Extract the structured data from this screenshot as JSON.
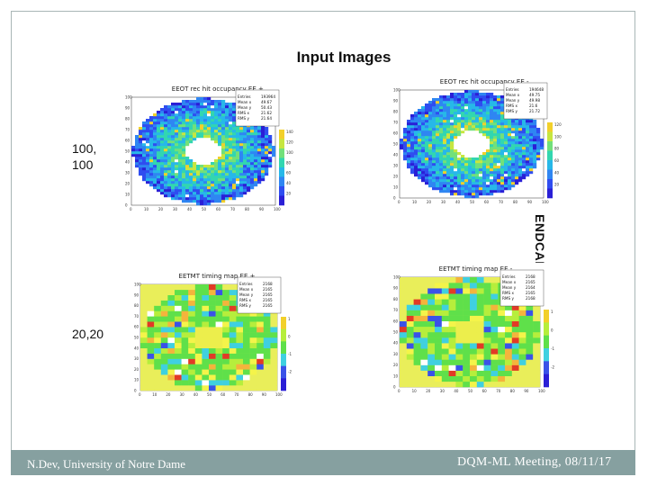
{
  "slide": {
    "title": "Input Images",
    "row1_label": [
      "100,",
      "100"
    ],
    "row2_label": "20,20",
    "side_label": "ENDCAPS",
    "footer_left": "N.Dev, University of Notre Dame",
    "footer_right": "DQM-ML Meeting, 08/11/17"
  },
  "panels": [
    {
      "title": "EEOT rec hit occupancy EE +",
      "stats": [
        [
          "Entries",
          "193964"
        ],
        [
          "Mean x",
          "49.67"
        ],
        [
          "Mean y",
          "50.43"
        ],
        [
          "RMS x",
          "21.62"
        ],
        [
          "RMS y",
          "21.64"
        ]
      ],
      "colorbar_ticks": [
        "140",
        "120",
        "100",
        "80",
        "60",
        "40",
        "20"
      ]
    },
    {
      "title": "EEOT rec hit occupancy EE -",
      "stats": [
        [
          "Entries",
          "194648"
        ],
        [
          "Mean x",
          "49.75"
        ],
        [
          "Mean y",
          "49.98"
        ],
        [
          "RMS x",
          "21.6"
        ],
        [
          "RMS y",
          "21.72"
        ]
      ],
      "colorbar_ticks": [
        "120",
        "100",
        "80",
        "60",
        "40",
        "20"
      ]
    },
    {
      "title": "EETMT timing map EE +",
      "stats": [
        [
          "Entries",
          "2168"
        ],
        [
          "Mean x",
          "2165"
        ],
        [
          "Mean y",
          "2165"
        ],
        [
          "RMS x",
          "2165"
        ],
        [
          "RMS y",
          "2165"
        ]
      ],
      "colorbar_ticks": [
        "1",
        "0",
        "-1",
        "-2"
      ]
    },
    {
      "title": "EETMT timing map EE -",
      "stats": [
        [
          "Entries",
          "2168"
        ],
        [
          "Mean x",
          "2165"
        ],
        [
          "Mean y",
          "2164"
        ],
        [
          "RMS x",
          "2165"
        ],
        [
          "RMS y",
          "2168"
        ]
      ],
      "colorbar_ticks": [
        "1",
        "0",
        "-1",
        "-2"
      ]
    }
  ],
  "axes": {
    "x_ticks": [
      "0",
      "10",
      "20",
      "30",
      "40",
      "50",
      "60",
      "70",
      "80",
      "90",
      "100"
    ],
    "y_ticks": [
      "0",
      "10",
      "20",
      "30",
      "40",
      "50",
      "60",
      "70",
      "80",
      "90",
      "100"
    ]
  }
}
